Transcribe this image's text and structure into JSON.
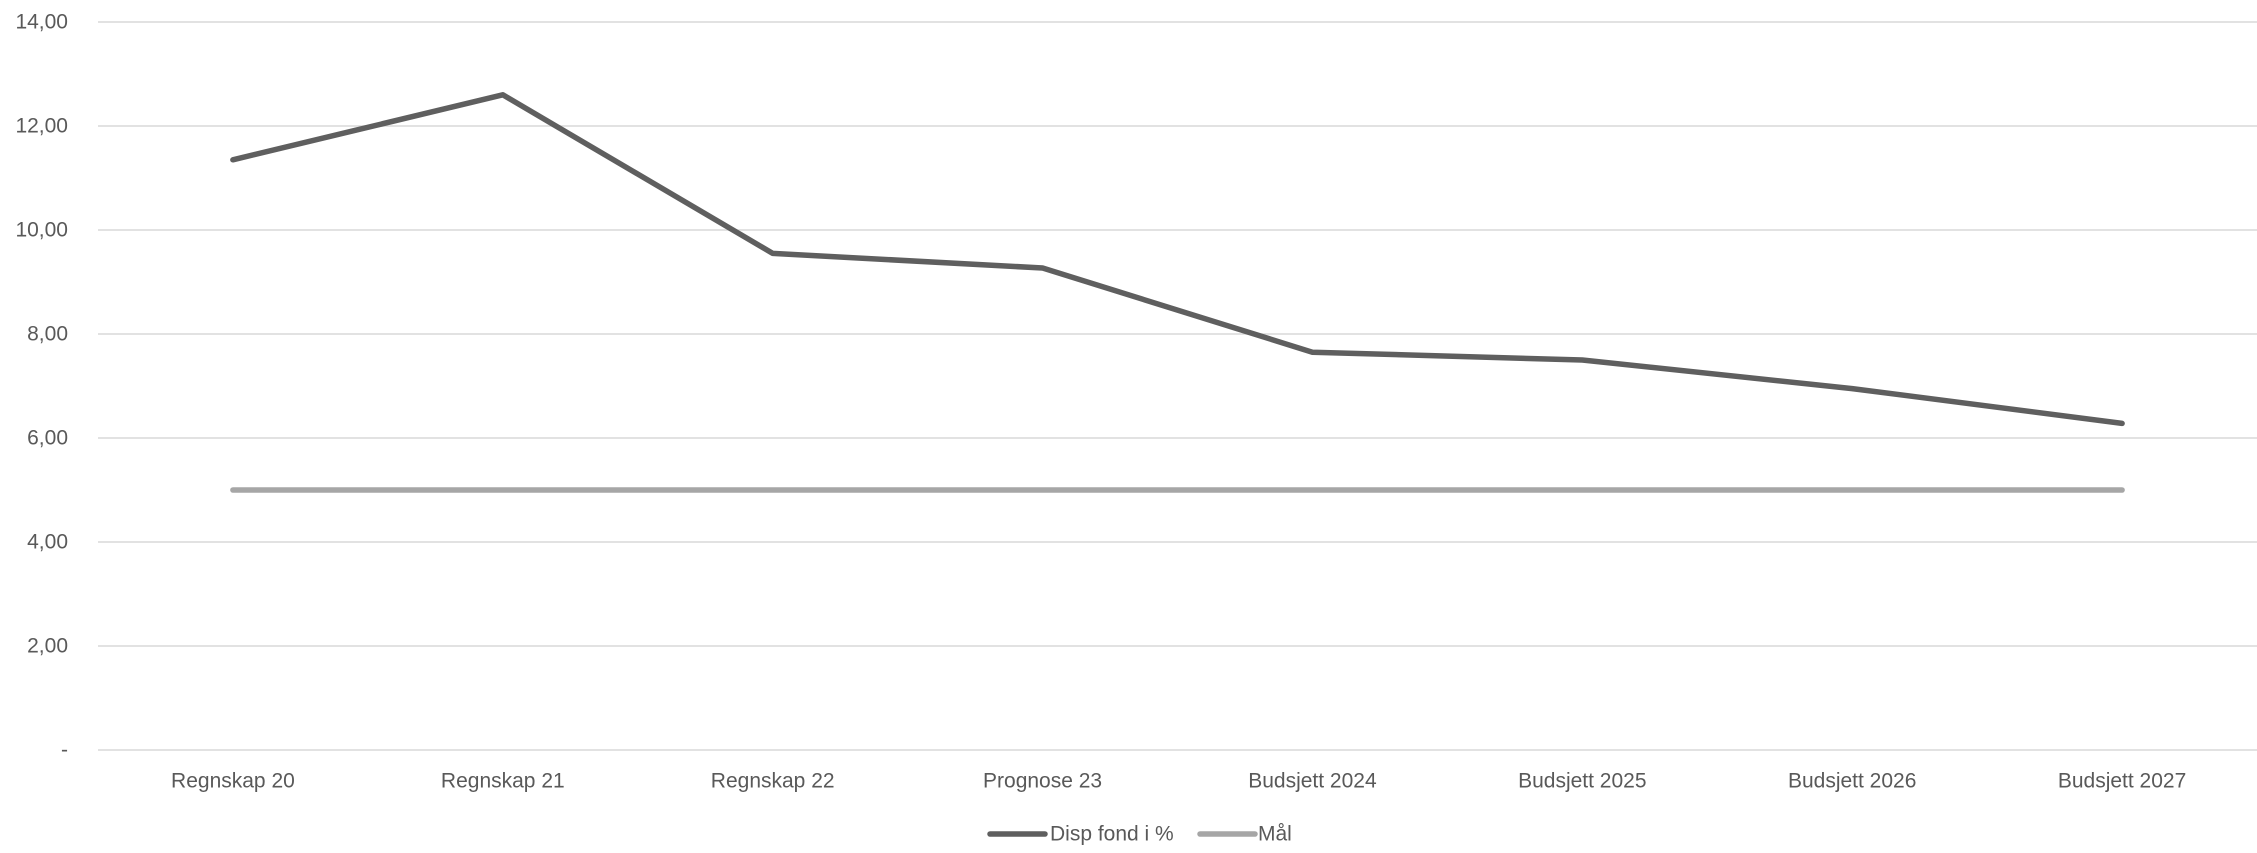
{
  "chart_data": {
    "type": "line",
    "title": "",
    "xlabel": "",
    "ylabel": "",
    "categories": [
      "Regnskap 20",
      "Regnskap 21",
      "Regnskap 22",
      "Prognose 23",
      "Budsjett 2024",
      "Budsjett 2025",
      "Budsjett 2026",
      "Budsjett 2027"
    ],
    "ylim": [
      0,
      14
    ],
    "yticks": [
      0,
      2,
      4,
      6,
      8,
      10,
      12,
      14
    ],
    "ytick_labels": [
      "-",
      "2,00",
      "4,00",
      "6,00",
      "8,00",
      "10,00",
      "12,00",
      "14,00"
    ],
    "grid": "horizontal",
    "legend_position": "bottom-center",
    "series": [
      {
        "name": "Disp fond i %",
        "color": "#5f5f5f",
        "values": [
          11.35,
          12.6,
          9.55,
          9.27,
          7.65,
          7.5,
          6.95,
          6.28
        ]
      },
      {
        "name": "Mål",
        "color": "#a6a6a6",
        "values": [
          5,
          5,
          5,
          5,
          5,
          5,
          5,
          5
        ]
      }
    ]
  }
}
